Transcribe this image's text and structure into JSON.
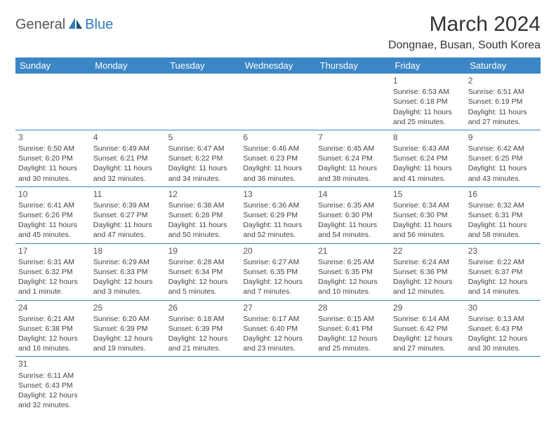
{
  "logo": {
    "general": "General",
    "blue": "Blue"
  },
  "title": "March 2024",
  "location": "Dongnae, Busan, South Korea",
  "colors": {
    "header_bg": "#3b86c6",
    "header_text": "#ffffff",
    "border": "#3b86c6",
    "logo_blue": "#2f7bbf",
    "logo_dark": "#1f4e79"
  },
  "weekdays": [
    "Sunday",
    "Monday",
    "Tuesday",
    "Wednesday",
    "Thursday",
    "Friday",
    "Saturday"
  ],
  "weeks": [
    [
      null,
      null,
      null,
      null,
      null,
      {
        "d": "1",
        "sr": "Sunrise: 6:53 AM",
        "ss": "Sunset: 6:18 PM",
        "dl1": "Daylight: 11 hours",
        "dl2": "and 25 minutes."
      },
      {
        "d": "2",
        "sr": "Sunrise: 6:51 AM",
        "ss": "Sunset: 6:19 PM",
        "dl1": "Daylight: 11 hours",
        "dl2": "and 27 minutes."
      }
    ],
    [
      {
        "d": "3",
        "sr": "Sunrise: 6:50 AM",
        "ss": "Sunset: 6:20 PM",
        "dl1": "Daylight: 11 hours",
        "dl2": "and 30 minutes."
      },
      {
        "d": "4",
        "sr": "Sunrise: 6:49 AM",
        "ss": "Sunset: 6:21 PM",
        "dl1": "Daylight: 11 hours",
        "dl2": "and 32 minutes."
      },
      {
        "d": "5",
        "sr": "Sunrise: 6:47 AM",
        "ss": "Sunset: 6:22 PM",
        "dl1": "Daylight: 11 hours",
        "dl2": "and 34 minutes."
      },
      {
        "d": "6",
        "sr": "Sunrise: 6:46 AM",
        "ss": "Sunset: 6:23 PM",
        "dl1": "Daylight: 11 hours",
        "dl2": "and 36 minutes."
      },
      {
        "d": "7",
        "sr": "Sunrise: 6:45 AM",
        "ss": "Sunset: 6:24 PM",
        "dl1": "Daylight: 11 hours",
        "dl2": "and 38 minutes."
      },
      {
        "d": "8",
        "sr": "Sunrise: 6:43 AM",
        "ss": "Sunset: 6:24 PM",
        "dl1": "Daylight: 11 hours",
        "dl2": "and 41 minutes."
      },
      {
        "d": "9",
        "sr": "Sunrise: 6:42 AM",
        "ss": "Sunset: 6:25 PM",
        "dl1": "Daylight: 11 hours",
        "dl2": "and 43 minutes."
      }
    ],
    [
      {
        "d": "10",
        "sr": "Sunrise: 6:41 AM",
        "ss": "Sunset: 6:26 PM",
        "dl1": "Daylight: 11 hours",
        "dl2": "and 45 minutes."
      },
      {
        "d": "11",
        "sr": "Sunrise: 6:39 AM",
        "ss": "Sunset: 6:27 PM",
        "dl1": "Daylight: 11 hours",
        "dl2": "and 47 minutes."
      },
      {
        "d": "12",
        "sr": "Sunrise: 6:38 AM",
        "ss": "Sunset: 6:28 PM",
        "dl1": "Daylight: 11 hours",
        "dl2": "and 50 minutes."
      },
      {
        "d": "13",
        "sr": "Sunrise: 6:36 AM",
        "ss": "Sunset: 6:29 PM",
        "dl1": "Daylight: 11 hours",
        "dl2": "and 52 minutes."
      },
      {
        "d": "14",
        "sr": "Sunrise: 6:35 AM",
        "ss": "Sunset: 6:30 PM",
        "dl1": "Daylight: 11 hours",
        "dl2": "and 54 minutes."
      },
      {
        "d": "15",
        "sr": "Sunrise: 6:34 AM",
        "ss": "Sunset: 6:30 PM",
        "dl1": "Daylight: 11 hours",
        "dl2": "and 56 minutes."
      },
      {
        "d": "16",
        "sr": "Sunrise: 6:32 AM",
        "ss": "Sunset: 6:31 PM",
        "dl1": "Daylight: 11 hours",
        "dl2": "and 58 minutes."
      }
    ],
    [
      {
        "d": "17",
        "sr": "Sunrise: 6:31 AM",
        "ss": "Sunset: 6:32 PM",
        "dl1": "Daylight: 12 hours",
        "dl2": "and 1 minute."
      },
      {
        "d": "18",
        "sr": "Sunrise: 6:29 AM",
        "ss": "Sunset: 6:33 PM",
        "dl1": "Daylight: 12 hours",
        "dl2": "and 3 minutes."
      },
      {
        "d": "19",
        "sr": "Sunrise: 6:28 AM",
        "ss": "Sunset: 6:34 PM",
        "dl1": "Daylight: 12 hours",
        "dl2": "and 5 minutes."
      },
      {
        "d": "20",
        "sr": "Sunrise: 6:27 AM",
        "ss": "Sunset: 6:35 PM",
        "dl1": "Daylight: 12 hours",
        "dl2": "and 7 minutes."
      },
      {
        "d": "21",
        "sr": "Sunrise: 6:25 AM",
        "ss": "Sunset: 6:35 PM",
        "dl1": "Daylight: 12 hours",
        "dl2": "and 10 minutes."
      },
      {
        "d": "22",
        "sr": "Sunrise: 6:24 AM",
        "ss": "Sunset: 6:36 PM",
        "dl1": "Daylight: 12 hours",
        "dl2": "and 12 minutes."
      },
      {
        "d": "23",
        "sr": "Sunrise: 6:22 AM",
        "ss": "Sunset: 6:37 PM",
        "dl1": "Daylight: 12 hours",
        "dl2": "and 14 minutes."
      }
    ],
    [
      {
        "d": "24",
        "sr": "Sunrise: 6:21 AM",
        "ss": "Sunset: 6:38 PM",
        "dl1": "Daylight: 12 hours",
        "dl2": "and 16 minutes."
      },
      {
        "d": "25",
        "sr": "Sunrise: 6:20 AM",
        "ss": "Sunset: 6:39 PM",
        "dl1": "Daylight: 12 hours",
        "dl2": "and 19 minutes."
      },
      {
        "d": "26",
        "sr": "Sunrise: 6:18 AM",
        "ss": "Sunset: 6:39 PM",
        "dl1": "Daylight: 12 hours",
        "dl2": "and 21 minutes."
      },
      {
        "d": "27",
        "sr": "Sunrise: 6:17 AM",
        "ss": "Sunset: 6:40 PM",
        "dl1": "Daylight: 12 hours",
        "dl2": "and 23 minutes."
      },
      {
        "d": "28",
        "sr": "Sunrise: 6:15 AM",
        "ss": "Sunset: 6:41 PM",
        "dl1": "Daylight: 12 hours",
        "dl2": "and 25 minutes."
      },
      {
        "d": "29",
        "sr": "Sunrise: 6:14 AM",
        "ss": "Sunset: 6:42 PM",
        "dl1": "Daylight: 12 hours",
        "dl2": "and 27 minutes."
      },
      {
        "d": "30",
        "sr": "Sunrise: 6:13 AM",
        "ss": "Sunset: 6:43 PM",
        "dl1": "Daylight: 12 hours",
        "dl2": "and 30 minutes."
      }
    ],
    [
      {
        "d": "31",
        "sr": "Sunrise: 6:11 AM",
        "ss": "Sunset: 6:43 PM",
        "dl1": "Daylight: 12 hours",
        "dl2": "and 32 minutes."
      },
      null,
      null,
      null,
      null,
      null,
      null
    ]
  ]
}
